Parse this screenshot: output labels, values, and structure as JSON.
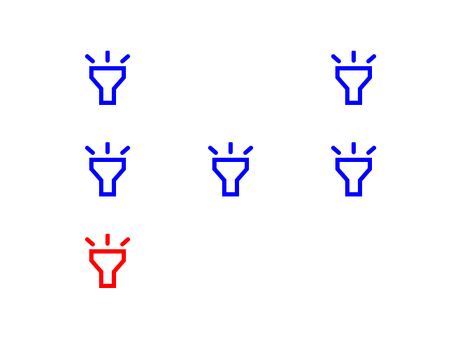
{
  "icons": [
    {
      "name": "flashlight-icon",
      "color": "#0000ff",
      "state": "default"
    },
    {
      "name": "flashlight-icon",
      "color": "#0000ff",
      "state": "default"
    },
    {
      "name": "flashlight-icon",
      "color": "#0000ff",
      "state": "default"
    },
    {
      "name": "flashlight-icon",
      "color": "#0000ff",
      "state": "default"
    },
    {
      "name": "flashlight-icon",
      "color": "#0000ff",
      "state": "default"
    },
    {
      "name": "flashlight-icon",
      "color": "#ff0000",
      "state": "highlighted"
    }
  ],
  "colors": {
    "background": "#ffffff",
    "default_icon": "#0000ff",
    "highlighted_icon": "#ff0000"
  }
}
